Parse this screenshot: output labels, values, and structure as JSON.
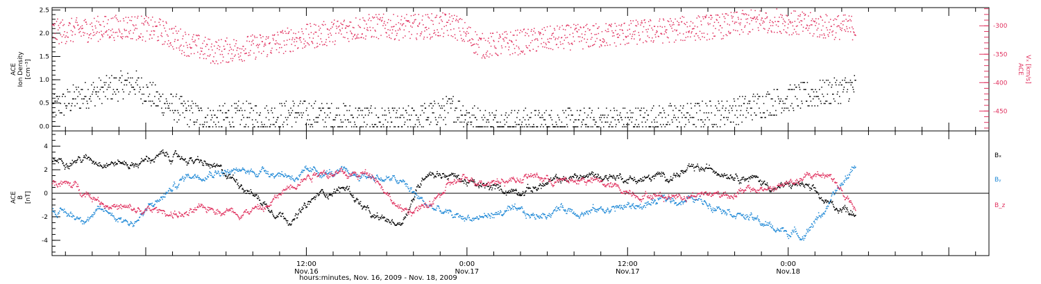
{
  "colors": {
    "black": "#000000",
    "pink": "#e0305e",
    "blue": "#1e88d6"
  },
  "xaxis": {
    "label": "hours:minutes, Nov. 16, 2009 - Nov. 18, 2009",
    "range_hours": [
      -7,
      63
    ],
    "tick_step_hours": 2,
    "major_ticks": [
      {
        "hour": 12,
        "time": "12:00",
        "date": "Nov.16"
      },
      {
        "hour": 24,
        "time": "0:00",
        "date": "Nov.17"
      },
      {
        "hour": 36,
        "time": "12:00",
        "date": "Nov.17"
      },
      {
        "hour": 48,
        "time": "0:00",
        "date": "Nov.18"
      }
    ]
  },
  "chart_data": [
    {
      "type": "scatter",
      "ylabel_left": [
        "ACE",
        "Ion Density",
        "[cm⁻³]"
      ],
      "ylabel_right": [
        "ACE",
        "Vₓ [km/s]"
      ],
      "ylim_left": [
        -0.1,
        2.55
      ],
      "left_ticks": [
        "0.0",
        "0.5",
        "1.0",
        "1.5",
        "2.0",
        "2.5"
      ],
      "left_tick_values": [
        0,
        0.5,
        1.0,
        1.5,
        2.0,
        2.5
      ],
      "ylim_right": [
        -485,
        -268
      ],
      "right_ticks": [
        "-300",
        "-350",
        "-400",
        "-450"
      ],
      "right_tick_values": [
        -300,
        -350,
        -400,
        -450
      ],
      "series": [
        {
          "axis": "left",
          "color": "#000000",
          "x_hours": [
            -7,
            -5,
            -3,
            -1,
            1,
            3,
            5,
            7,
            9,
            11,
            13,
            15,
            17,
            19,
            21,
            23,
            25,
            27,
            29,
            31,
            33,
            35,
            37,
            39,
            41,
            43,
            45,
            47,
            49,
            51,
            53
          ],
          "y": [
            0.4,
            0.65,
            0.8,
            0.95,
            0.55,
            0.3,
            0.15,
            0.25,
            0.2,
            0.3,
            0.25,
            0.2,
            0.15,
            0.1,
            0.25,
            0.4,
            0.1,
            0.1,
            0.1,
            0.1,
            0.1,
            0.15,
            0.15,
            0.2,
            0.25,
            0.3,
            0.4,
            0.55,
            0.65,
            0.75,
            0.85
          ]
        },
        {
          "axis": "right",
          "color": "#e0305e",
          "x_hours": [
            -7,
            -5,
            -3,
            -1,
            1,
            3,
            5,
            7,
            9,
            11,
            13,
            15,
            17,
            19,
            21,
            23,
            25,
            27,
            29,
            31,
            33,
            35,
            37,
            39,
            41,
            43,
            45,
            47,
            49,
            51,
            53
          ],
          "y": [
            -310,
            -307,
            -303,
            -301,
            -308,
            -330,
            -345,
            -340,
            -333,
            -322,
            -315,
            -305,
            -300,
            -302,
            -300,
            -298,
            -335,
            -330,
            -325,
            -320,
            -318,
            -314,
            -310,
            -307,
            -303,
            -300,
            -293,
            -288,
            -297,
            -301,
            -302
          ]
        }
      ]
    },
    {
      "type": "line",
      "ylabel": [
        "ACE",
        "B",
        "[nT]"
      ],
      "ylim": [
        -5.3,
        5.3
      ],
      "ticks": [
        "4",
        "2",
        "0",
        "-2",
        "-4"
      ],
      "tick_values": [
        4,
        2,
        0,
        -2,
        -4
      ],
      "zero_line": true,
      "legend": [
        "Bₓ",
        "Bᵧ",
        "B_z"
      ],
      "series": [
        {
          "name": "Bₓ",
          "color": "#000000",
          "x_hours": [
            -7,
            -5,
            -3,
            -1,
            1,
            3,
            5,
            7,
            9,
            11,
            13,
            15,
            17,
            19,
            21,
            23,
            25,
            27,
            29,
            31,
            33,
            35,
            37,
            39,
            41,
            43,
            45,
            47,
            49,
            51,
            53
          ],
          "y": [
            2.8,
            3.0,
            2.8,
            2.5,
            3.2,
            3.0,
            2.2,
            1.0,
            -1.0,
            -2.2,
            0.0,
            0.5,
            -2.2,
            -2.5,
            2.0,
            1.5,
            0.5,
            0.3,
            0.5,
            1.2,
            1.5,
            1.5,
            1.2,
            1.5,
            2.0,
            2.0,
            1.5,
            0.5,
            0.8,
            -1.0,
            -1.5
          ]
        },
        {
          "name": "Bᵧ",
          "color": "#1e88d6",
          "x_hours": [
            -7,
            -5,
            -3,
            -1,
            1,
            3,
            5,
            7,
            9,
            11,
            13,
            15,
            17,
            19,
            21,
            23,
            25,
            27,
            29,
            31,
            33,
            35,
            37,
            39,
            41,
            43,
            45,
            47,
            49,
            51,
            53
          ],
          "y": [
            -1.5,
            -2.0,
            -1.5,
            -2.5,
            -0.5,
            1.5,
            2.0,
            1.8,
            2.0,
            1.5,
            1.8,
            1.6,
            1.5,
            1.0,
            -1.0,
            -2.0,
            -2.0,
            -1.5,
            -2.0,
            -1.2,
            -1.5,
            -1.2,
            -1.0,
            -0.5,
            -0.5,
            -1.0,
            -2.0,
            -3.0,
            -3.5,
            -1.0,
            2.5
          ]
        },
        {
          "name": "B_z",
          "color": "#e0305e",
          "x_hours": [
            -7,
            -5,
            -3,
            -1,
            1,
            3,
            5,
            7,
            9,
            11,
            13,
            15,
            17,
            19,
            21,
            23,
            25,
            27,
            29,
            31,
            33,
            35,
            37,
            39,
            41,
            43,
            45,
            47,
            49,
            51,
            53
          ],
          "y": [
            1.0,
            0.5,
            -0.8,
            -1.5,
            -1.5,
            -1.8,
            -1.2,
            -1.5,
            -1.2,
            1.0,
            2.0,
            1.5,
            1.8,
            -1.5,
            -1.2,
            1.0,
            1.2,
            1.2,
            1.5,
            1.0,
            1.2,
            0.5,
            0.0,
            -0.2,
            0.0,
            0.0,
            0.2,
            0.5,
            1.2,
            1.8,
            -1.5
          ]
        }
      ]
    }
  ]
}
